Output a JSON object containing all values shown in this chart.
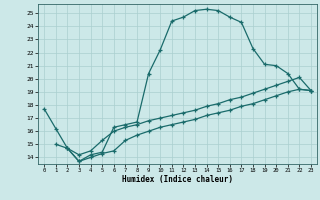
{
  "xlabel": "Humidex (Indice chaleur)",
  "background_color": "#cce8e8",
  "grid_color": "#aacfcf",
  "line_color": "#1a6b6b",
  "xlim": [
    -0.5,
    23.5
  ],
  "ylim": [
    13.5,
    25.7
  ],
  "xticks": [
    0,
    1,
    2,
    3,
    4,
    5,
    6,
    7,
    8,
    9,
    10,
    11,
    12,
    13,
    14,
    15,
    16,
    17,
    18,
    19,
    20,
    21,
    22,
    23
  ],
  "yticks": [
    14,
    15,
    16,
    17,
    18,
    19,
    20,
    21,
    22,
    23,
    24,
    25
  ],
  "curve1_x": [
    0,
    1,
    2,
    3,
    4,
    5,
    6,
    7,
    8,
    9,
    10,
    11,
    12,
    13,
    14,
    15,
    16,
    17,
    18,
    19,
    20,
    21,
    22,
    23
  ],
  "curve1_y": [
    17.7,
    16.2,
    14.7,
    13.7,
    14.2,
    14.4,
    16.3,
    16.5,
    16.7,
    20.4,
    22.2,
    24.4,
    24.7,
    25.2,
    25.3,
    25.2,
    24.7,
    24.3,
    22.3,
    21.1,
    21.0,
    20.4,
    19.2,
    19.1
  ],
  "curve2_x": [
    1,
    2,
    3,
    4,
    5,
    6,
    7,
    8,
    9,
    10,
    11,
    12,
    13,
    14,
    15,
    16,
    17,
    18,
    19,
    20,
    21,
    22,
    23
  ],
  "curve2_y": [
    15.0,
    14.7,
    14.2,
    14.5,
    15.3,
    16.0,
    16.3,
    16.5,
    16.8,
    17.0,
    17.2,
    17.4,
    17.6,
    17.9,
    18.1,
    18.4,
    18.6,
    18.9,
    19.2,
    19.5,
    19.8,
    20.1,
    19.1
  ],
  "curve3_x": [
    2,
    3,
    4,
    5,
    6,
    7,
    8,
    9,
    10,
    11,
    12,
    13,
    14,
    15,
    16,
    17,
    18,
    19,
    20,
    21,
    22,
    23
  ],
  "curve3_y": [
    14.7,
    13.7,
    14.0,
    14.3,
    14.5,
    15.3,
    15.7,
    16.0,
    16.3,
    16.5,
    16.7,
    16.9,
    17.2,
    17.4,
    17.6,
    17.9,
    18.1,
    18.4,
    18.7,
    19.0,
    19.2,
    19.1
  ]
}
